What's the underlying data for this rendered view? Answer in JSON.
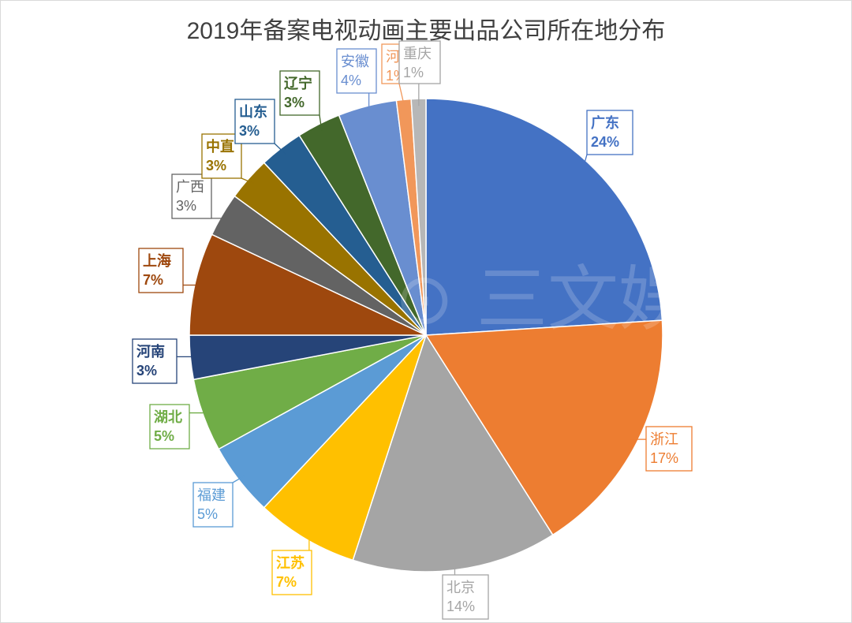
{
  "chart_data": {
    "type": "pie",
    "title": "2019年备案电视动画主要出品公司所在地分布",
    "start_angle_deg": 0,
    "direction": "clockwise",
    "slices": [
      {
        "label": "广东",
        "value": 24,
        "pct_text": "24%",
        "color": "#4472C4",
        "text_color": "#4472C4",
        "bold": true
      },
      {
        "label": "浙江",
        "value": 17,
        "pct_text": "17%",
        "color": "#ED7D31",
        "text_color": "#ED7D31",
        "bold": false
      },
      {
        "label": "北京",
        "value": 14,
        "pct_text": "14%",
        "color": "#A5A5A5",
        "text_color": "#A5A5A5",
        "bold": false
      },
      {
        "label": "江苏",
        "value": 7,
        "pct_text": "7%",
        "color": "#FFC000",
        "text_color": "#FFC000",
        "bold": true
      },
      {
        "label": "福建",
        "value": 5,
        "pct_text": "5%",
        "color": "#5B9BD5",
        "text_color": "#5B9BD5",
        "bold": false
      },
      {
        "label": "湖北",
        "value": 5,
        "pct_text": "5%",
        "color": "#70AD47",
        "text_color": "#70AD47",
        "bold": true
      },
      {
        "label": "河南",
        "value": 3,
        "pct_text": "3%",
        "color": "#264478",
        "text_color": "#264478",
        "bold": true
      },
      {
        "label": "上海",
        "value": 7,
        "pct_text": "7%",
        "color": "#9E480E",
        "text_color": "#9E480E",
        "bold": true
      },
      {
        "label": "广西",
        "value": 3,
        "pct_text": "3%",
        "color": "#636363",
        "text_color": "#636363",
        "bold": false
      },
      {
        "label": "中直",
        "value": 3,
        "pct_text": "3%",
        "color": "#997300",
        "text_color": "#997300",
        "bold": true
      },
      {
        "label": "山东",
        "value": 3,
        "pct_text": "3%",
        "color": "#255E91",
        "text_color": "#255E91",
        "bold": true
      },
      {
        "label": "辽宁",
        "value": 3,
        "pct_text": "3%",
        "color": "#43682B",
        "text_color": "#43682B",
        "bold": true
      },
      {
        "label": "安徽",
        "value": 4,
        "pct_text": "4%",
        "color": "#698ED0",
        "text_color": "#698ED0",
        "bold": false
      },
      {
        "label": "河",
        "value": 1,
        "pct_text": "1%",
        "color": "#F1975A",
        "text_color": "#F1975A",
        "bold": false
      },
      {
        "label": "重庆",
        "value": 1,
        "pct_text": "1%",
        "color": "#B7B7B7",
        "text_color": "#A5A5A5",
        "bold": false
      }
    ]
  }
}
